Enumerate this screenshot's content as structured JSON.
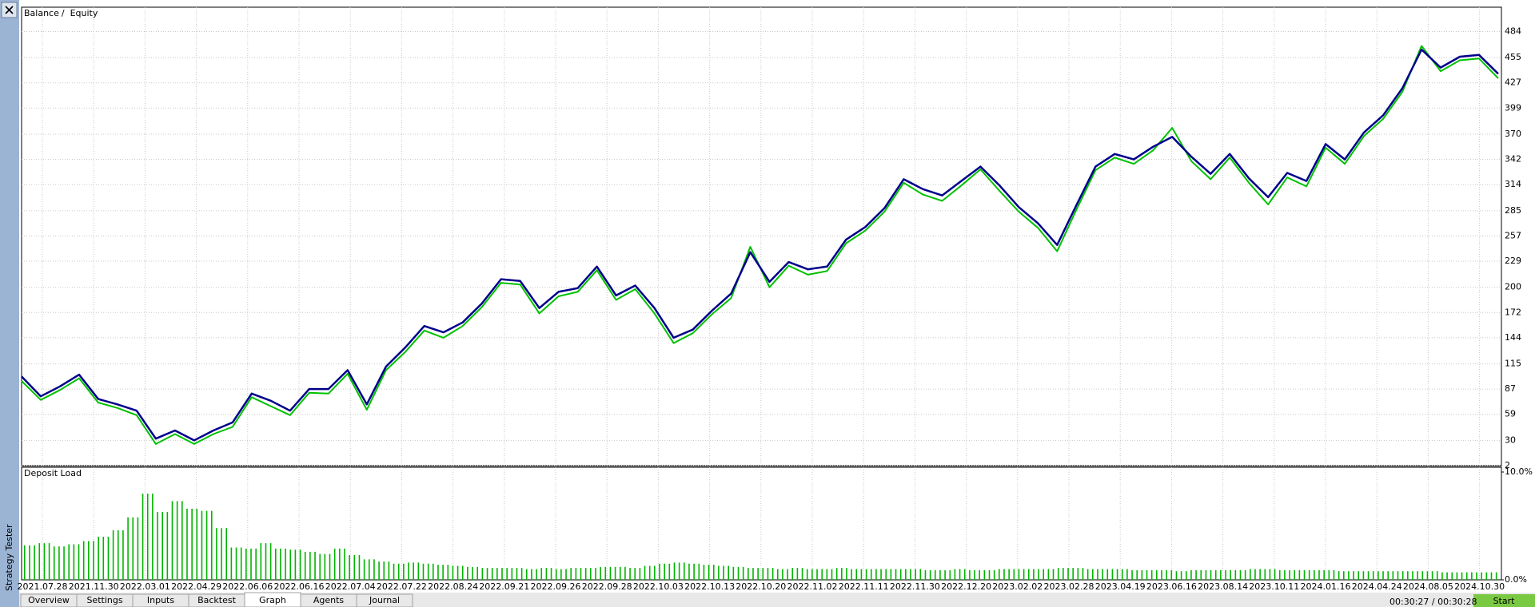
{
  "window": {
    "sidebar_label": "Strategy Tester",
    "legend_separator": "/"
  },
  "chart_data": [
    {
      "type": "line",
      "ylim": [
        2,
        511
      ],
      "yticks": [
        2,
        30,
        59,
        87,
        115,
        144,
        172,
        200,
        229,
        257,
        285,
        314,
        342,
        370,
        399,
        427,
        455,
        484
      ],
      "grid": true,
      "series": [
        {
          "name": "Balance",
          "color": "#00008b",
          "values": [
            101,
            79,
            90,
            103,
            76,
            70,
            63,
            32,
            41,
            30,
            41,
            50,
            82,
            74,
            63,
            87,
            87,
            108,
            70,
            112,
            133,
            157,
            150,
            161,
            182,
            209,
            207,
            177,
            195,
            199,
            223,
            191,
            202,
            177,
            144,
            153,
            174,
            193,
            239,
            206,
            228,
            220,
            223,
            253,
            267,
            288,
            320,
            309,
            302,
            318,
            334,
            313,
            289,
            271,
            247,
            291,
            334,
            348,
            342,
            356,
            367,
            345,
            326,
            348,
            321,
            300,
            327,
            318,
            359,
            342,
            372,
            391,
            421,
            464,
            444,
            456,
            458,
            437
          ]
        },
        {
          "name": "Equity",
          "color": "#00c000",
          "values": [
            96,
            75,
            86,
            99,
            72,
            66,
            58,
            26,
            37,
            26,
            37,
            45,
            78,
            68,
            58,
            83,
            82,
            104,
            64,
            108,
            128,
            152,
            144,
            157,
            178,
            205,
            203,
            171,
            190,
            195,
            219,
            186,
            198,
            171,
            138,
            149,
            170,
            188,
            245,
            200,
            224,
            214,
            218,
            249,
            263,
            284,
            316,
            303,
            296,
            313,
            331,
            307,
            284,
            266,
            240,
            286,
            330,
            344,
            337,
            352,
            377,
            340,
            320,
            344,
            316,
            292,
            322,
            312,
            355,
            337,
            368,
            387,
            417,
            468,
            440,
            452,
            454,
            432
          ]
        }
      ]
    },
    {
      "type": "bar",
      "title": "Deposit Load",
      "color": "#00b400",
      "ylim": [
        0,
        10
      ],
      "yticks": [
        {
          "value": 10,
          "label": "10.0%"
        },
        {
          "value": 0,
          "label": "0.0%"
        }
      ],
      "values": [
        3.2,
        3.4,
        3.1,
        3.3,
        3.6,
        4.0,
        4.6,
        5.8,
        8.0,
        6.3,
        7.3,
        6.6,
        6.4,
        4.8,
        3.0,
        2.9,
        3.4,
        2.9,
        2.8,
        2.6,
        2.4,
        2.9,
        2.3,
        1.9,
        1.7,
        1.5,
        1.6,
        1.5,
        1.4,
        1.3,
        1.2,
        1.1,
        1.1,
        1.1,
        1.0,
        1.1,
        1.0,
        1.1,
        1.1,
        1.2,
        1.2,
        1.1,
        1.3,
        1.5,
        1.6,
        1.5,
        1.4,
        1.3,
        1.2,
        1.1,
        1.1,
        1.0,
        1.1,
        1.0,
        1.0,
        1.1,
        1.0,
        1.0,
        1.0,
        1.0,
        1.0,
        0.9,
        0.9,
        1.0,
        0.9,
        0.9,
        1.0,
        1.0,
        1.0,
        1.0,
        1.1,
        1.1,
        1.0,
        1.0,
        1.0,
        0.9,
        0.9,
        0.9,
        0.8,
        0.9,
        0.9,
        0.9,
        0.9,
        1.0,
        1.0,
        0.9,
        0.9,
        0.9,
        0.9,
        0.8,
        0.8,
        0.8,
        0.8,
        0.8,
        0.8,
        0.8,
        0.7,
        0.7,
        0.7,
        0.7
      ]
    }
  ],
  "x_axis_labels": [
    "2021.07.28",
    "2021.11.30",
    "2022.03.01",
    "2022.04.29",
    "2022.06.06",
    "2022.06.16",
    "2022.07.04",
    "2022.07.22",
    "2022.08.24",
    "2022.09.21",
    "2022.09.26",
    "2022.09.28",
    "2022.10.03",
    "2022.10.13",
    "2022.10.20",
    "2022.11.02",
    "2022.11.11",
    "2022.11.30",
    "2022.12.20",
    "2023.02.02",
    "2023.02.28",
    "2023.04.19",
    "2023.06.16",
    "2023.08.14",
    "2023.10.11",
    "2024.01.16",
    "2024.04.24",
    "2024.08.05",
    "2024.10.30"
  ],
  "tabs": [
    "Overview",
    "Settings",
    "Inputs",
    "Backtest",
    "Graph",
    "Agents",
    "Journal"
  ],
  "active_tab": 4,
  "status": {
    "time": "00:30:27 / 00:30:28",
    "button": "Start"
  }
}
